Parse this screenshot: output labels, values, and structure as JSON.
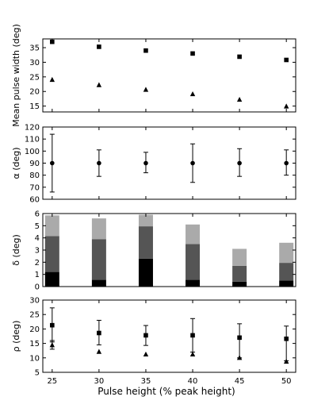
{
  "xlabel": "Pulse height (% peak height)",
  "x_ticks": [
    25,
    30,
    35,
    40,
    45,
    50
  ],
  "chart_data": [
    {
      "id": "mean-pulse-width",
      "type": "scatter",
      "title": "",
      "xlabel": "",
      "ylabel": "Mean pulse width (deg)",
      "xlim": [
        24,
        51
      ],
      "ylim": [
        13,
        38
      ],
      "yticks": [
        15,
        20,
        25,
        30,
        35
      ],
      "x": [
        25,
        30,
        35,
        40,
        45,
        50
      ],
      "series": [
        {
          "marker": "square",
          "values": [
            37.0,
            35.3,
            34.0,
            33.0,
            31.9,
            30.8
          ]
        },
        {
          "marker": "triangle",
          "values": [
            24.0,
            22.2,
            20.6,
            19.1,
            17.2,
            14.9
          ]
        }
      ]
    },
    {
      "id": "alpha",
      "type": "scatter",
      "title": "",
      "xlabel": "",
      "ylabel": "α (deg)",
      "xlim": [
        24,
        51
      ],
      "ylim": [
        60,
        120
      ],
      "yticks": [
        60,
        70,
        80,
        90,
        100,
        110,
        120
      ],
      "x": [
        25,
        30,
        35,
        40,
        45,
        50
      ],
      "series": [
        {
          "marker": "circle",
          "values": [
            90,
            90,
            90,
            90,
            90,
            90
          ],
          "err_low": [
            66,
            79,
            82,
            74,
            79,
            80
          ],
          "err_high": [
            114,
            101,
            99,
            106,
            102,
            101
          ]
        }
      ]
    },
    {
      "id": "delta",
      "type": "bar",
      "title": "",
      "xlabel": "",
      "ylabel": "δ (deg)",
      "xlim": [
        24,
        51
      ],
      "ylim": [
        0,
        6
      ],
      "yticks": [
        0,
        1,
        2,
        3,
        4,
        5,
        6
      ],
      "x": [
        25,
        30,
        35,
        40,
        45,
        50
      ],
      "stacked": true,
      "series": [
        {
          "color": "#000000",
          "values": [
            1.2,
            0.55,
            2.3,
            0.55,
            0.4,
            0.5
          ]
        },
        {
          "color": "#555555",
          "values": [
            2.95,
            3.35,
            2.65,
            2.95,
            1.3,
            1.45
          ]
        },
        {
          "color": "#aaaaaa",
          "values": [
            1.7,
            1.7,
            0.95,
            1.6,
            1.4,
            1.65
          ]
        }
      ]
    },
    {
      "id": "rho",
      "type": "scatter",
      "title": "",
      "xlabel": "",
      "ylabel": "ρ (deg)",
      "xlim": [
        24,
        51
      ],
      "ylim": [
        5,
        30
      ],
      "yticks": [
        5,
        10,
        15,
        20,
        25,
        30
      ],
      "x": [
        25,
        30,
        35,
        40,
        45,
        50
      ],
      "series": [
        {
          "marker": "square",
          "values": [
            21.3,
            18.6,
            17.8,
            17.8,
            17.0,
            16.6
          ],
          "err_low": [
            15.5,
            14.5,
            14.3,
            12.0,
            10.0,
            9.0
          ],
          "err_high": [
            27.3,
            23.0,
            21.2,
            23.6,
            21.8,
            21.0
          ]
        },
        {
          "marker": "triangle",
          "values": [
            14.4,
            12.1,
            11.2,
            11.2,
            10.0,
            8.7
          ],
          "err_low": [
            13.0,
            null,
            null,
            null,
            null,
            null
          ],
          "err_high": [
            16.0,
            null,
            null,
            null,
            null,
            null
          ]
        }
      ]
    }
  ]
}
